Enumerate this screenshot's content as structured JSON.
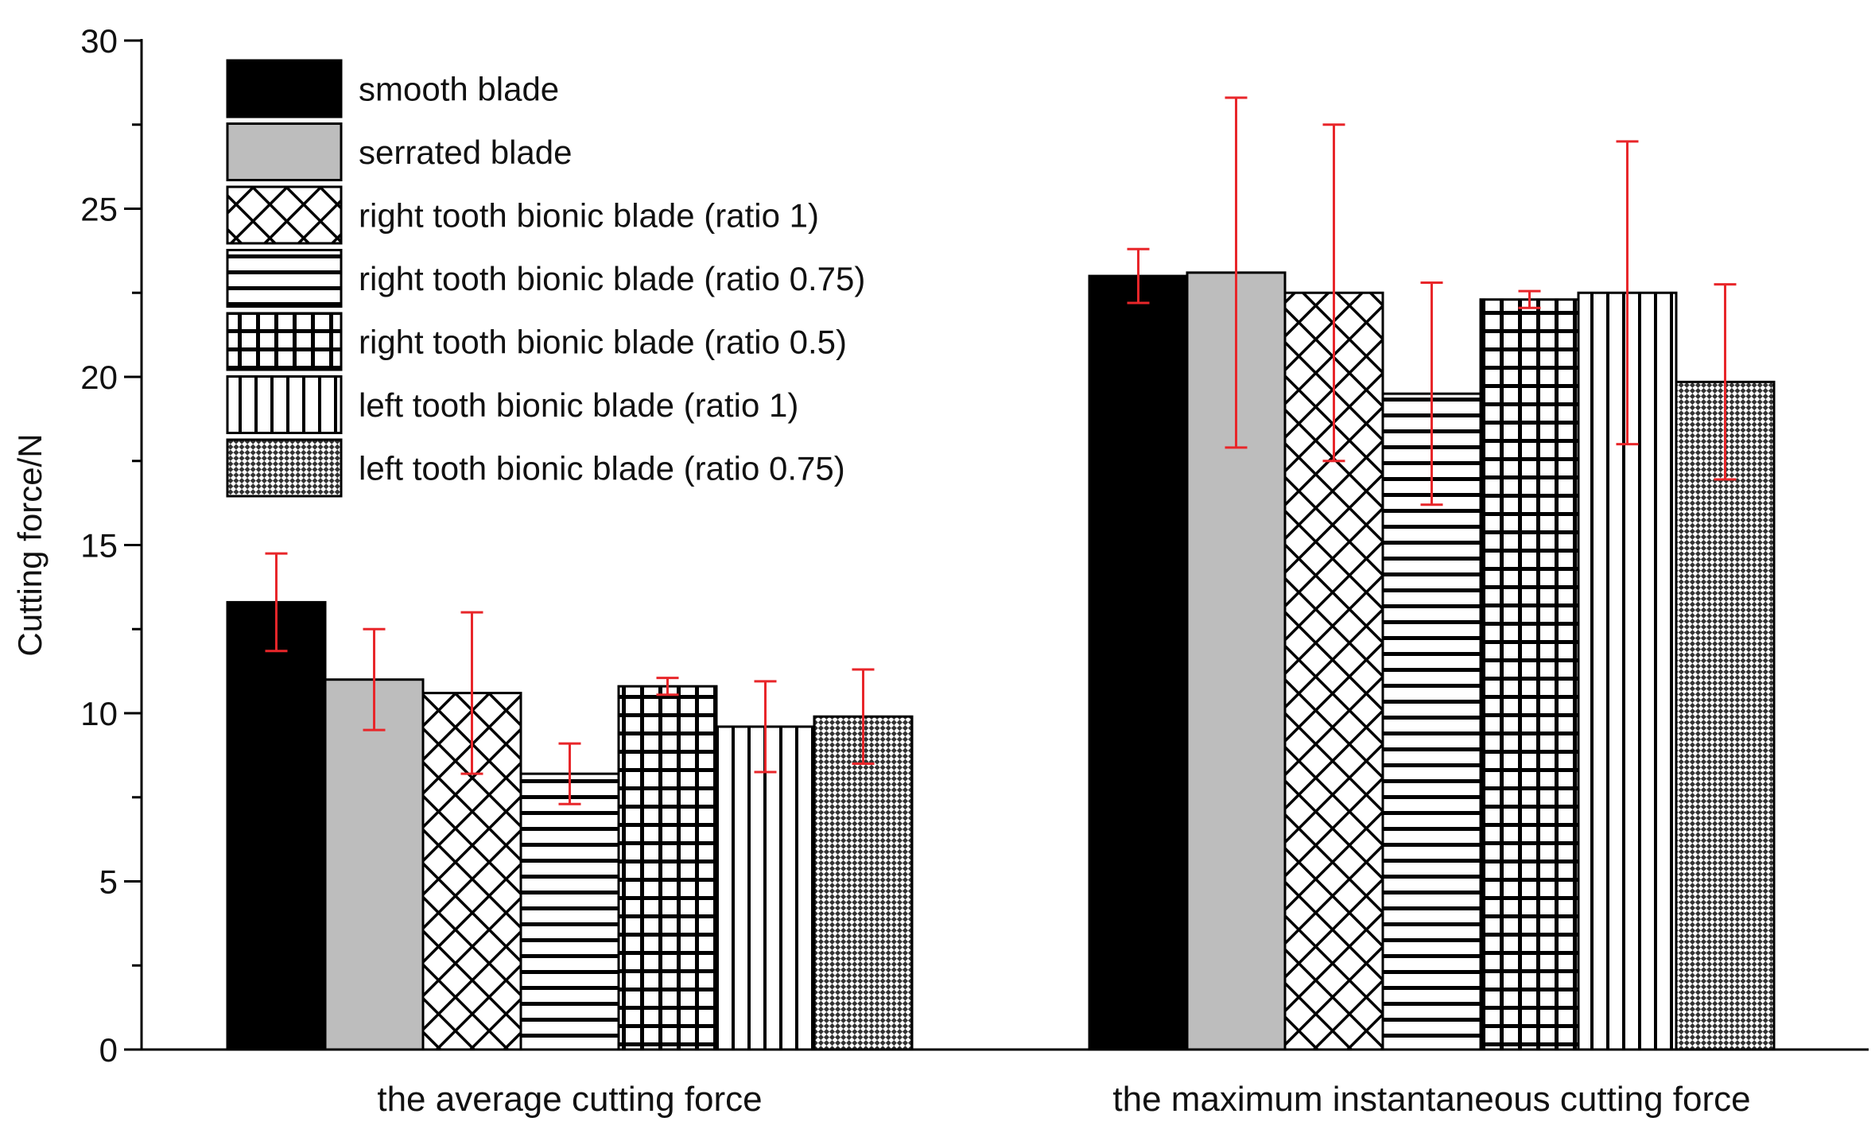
{
  "chart_data": {
    "type": "bar",
    "title": "",
    "xlabel": "",
    "ylabel": "Cutting force/N",
    "ylim": [
      0,
      30
    ],
    "yticks": [
      0,
      5,
      10,
      15,
      20,
      25,
      30
    ],
    "grid": false,
    "legend_position": "top-left",
    "categories": [
      "the average cutting force",
      "the maximum instantaneous cutting force"
    ],
    "error_bar_color": "#e8262a",
    "series": [
      {
        "name": "smooth blade",
        "pattern": "solid-black",
        "values": [
          13.3,
          23.0
        ],
        "error": [
          1.45,
          0.8
        ]
      },
      {
        "name": "serrated blade",
        "pattern": "solid-gray",
        "values": [
          11.0,
          23.1
        ],
        "error": [
          1.5,
          5.2
        ]
      },
      {
        "name": "right tooth bionic blade (ratio 1)",
        "pattern": "crosshatch",
        "values": [
          10.6,
          22.5
        ],
        "error": [
          2.4,
          5.0
        ]
      },
      {
        "name": "right tooth bionic blade (ratio 0.75)",
        "pattern": "horizontal-lines",
        "values": [
          8.2,
          19.5
        ],
        "error": [
          0.9,
          3.3
        ]
      },
      {
        "name": "right tooth bionic blade (ratio 0.5)",
        "pattern": "grid",
        "values": [
          10.8,
          22.3
        ],
        "error": [
          0.25,
          0.25
        ]
      },
      {
        "name": "left tooth bionic blade (ratio 1)",
        "pattern": "vertical-lines",
        "values": [
          9.6,
          22.5
        ],
        "error": [
          1.35,
          4.5
        ]
      },
      {
        "name": "left tooth bionic blade (ratio 0.75)",
        "pattern": "dense-checker",
        "values": [
          9.9,
          19.85
        ],
        "error": [
          1.4,
          2.9
        ]
      }
    ]
  }
}
